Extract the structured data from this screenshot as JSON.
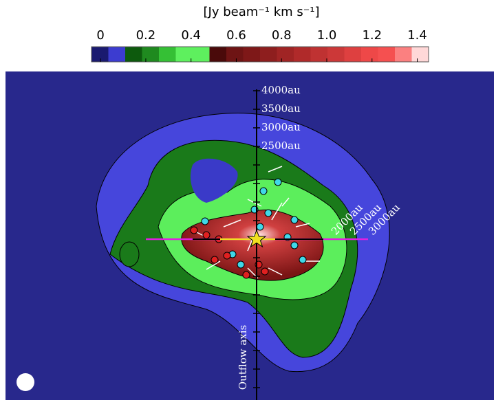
{
  "chart_data": {
    "type": "image",
    "colorbar": {
      "label": "[Jy beam⁻¹ km s⁻¹]",
      "lim": [
        -0.04,
        1.45
      ],
      "ticks": [
        0,
        0.2,
        0.4,
        0.6,
        0.8,
        {
          "value": 1,
          "label": "1.0"
        },
        1.2,
        1.4
      ],
      "colors": [
        "#1a1a70",
        "#3c3cd0",
        "#0d5a0d",
        "#1f8a1f",
        "#35c035",
        "#5ef05e",
        "#5ef05e",
        "#4a0a0a",
        "#6e1414",
        "#7e1818",
        "#8e1e1e",
        "#a02424",
        "#b02a2a",
        "#bf3232",
        "#cc3838",
        "#de4040",
        "#ee4848",
        "#f55050",
        "#fb8080",
        "#ffd8d8"
      ]
    },
    "vertical_labels": [
      "4000au",
      "3500au",
      "3000au",
      "2500au"
    ],
    "horizontal_labels": [
      "2000au",
      "2500au",
      "3000au"
    ],
    "axis_label": "Outflow axis"
  }
}
